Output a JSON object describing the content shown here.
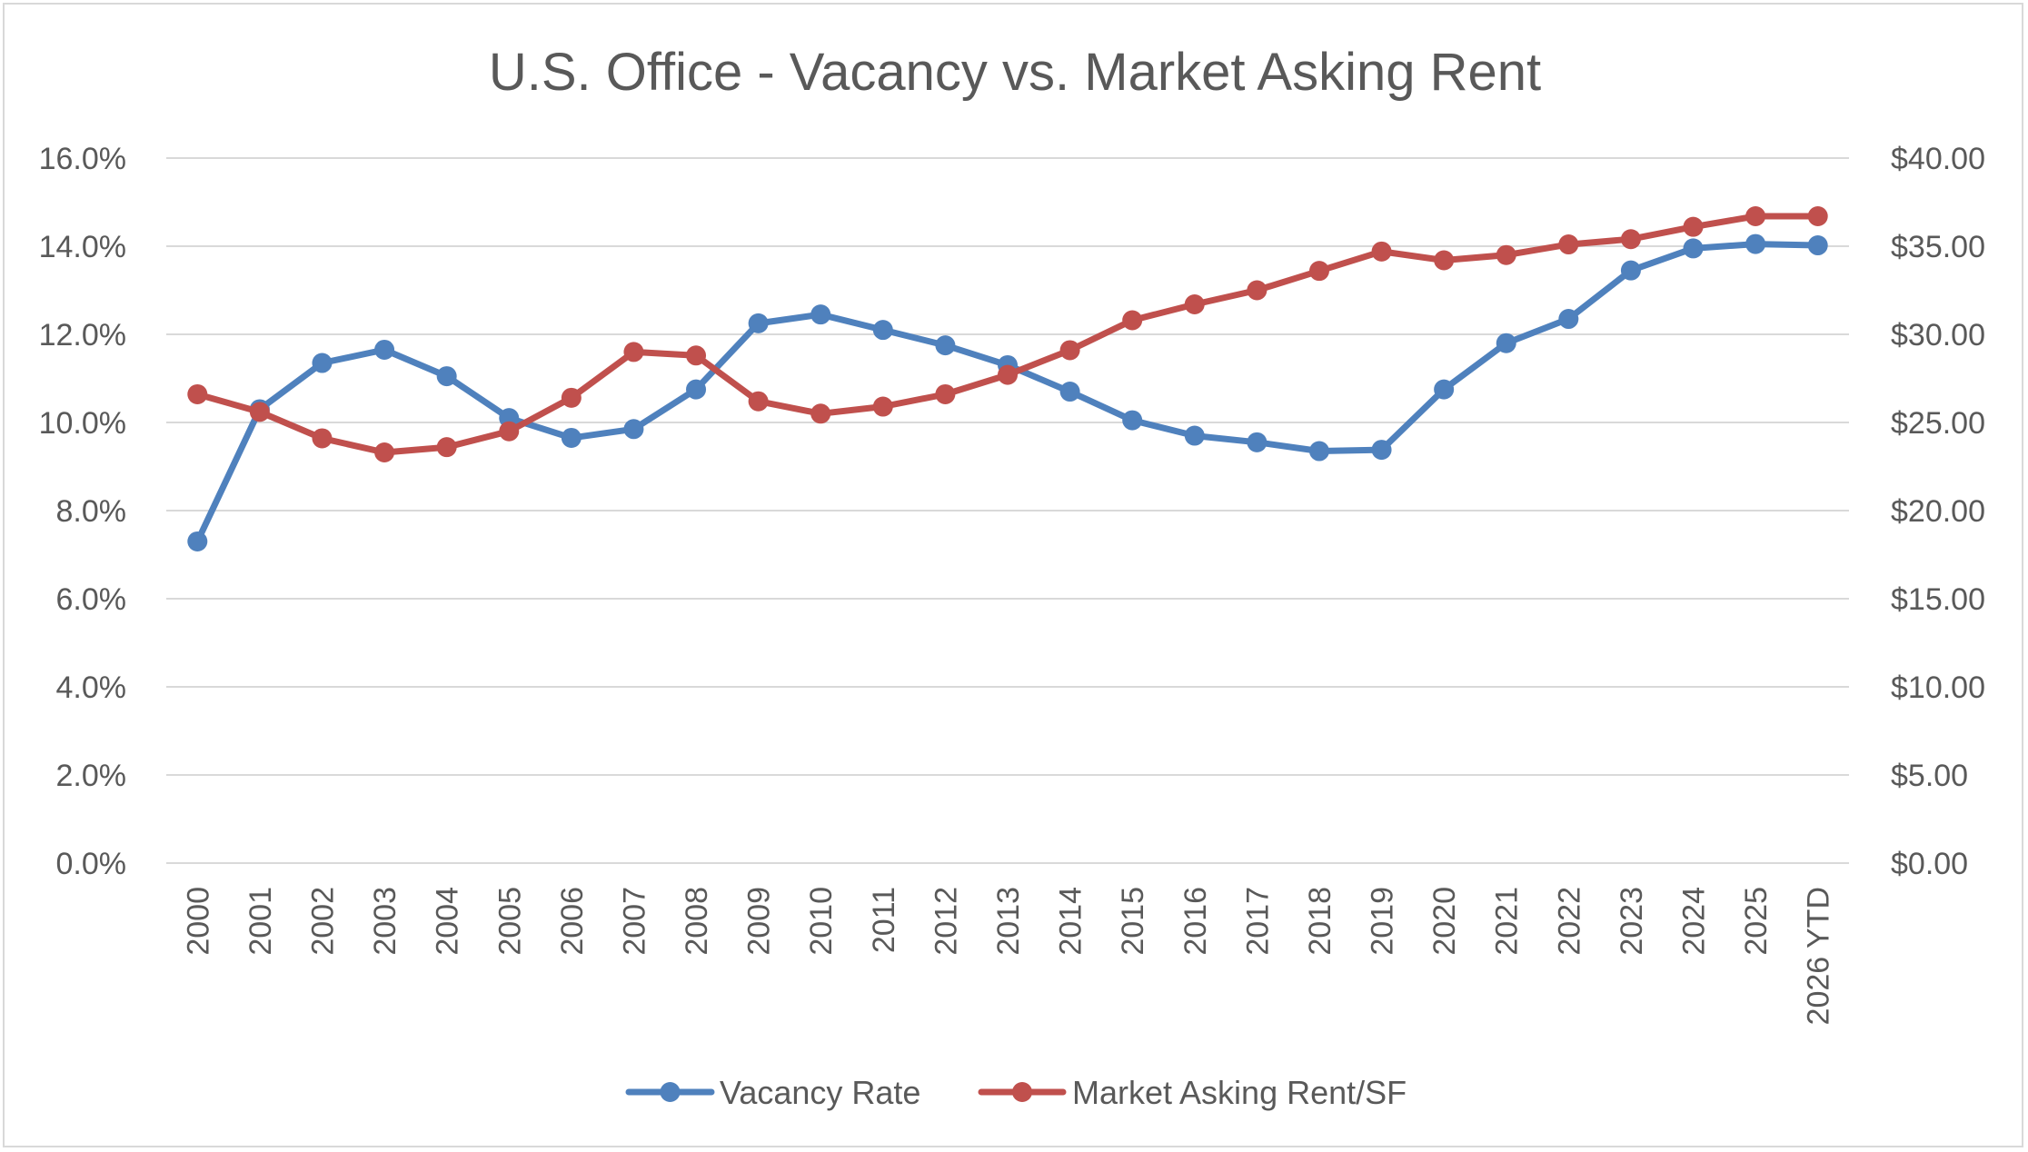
{
  "chart_data": {
    "type": "line",
    "title": "U.S. Office - Vacancy vs. Market Asking Rent",
    "categories": [
      "2000",
      "2001",
      "2002",
      "2003",
      "2004",
      "2005",
      "2006",
      "2007",
      "2008",
      "2009",
      "2010",
      "2011",
      "2012",
      "2013",
      "2014",
      "2015",
      "2016",
      "2017",
      "2018",
      "2019",
      "2020",
      "2021",
      "2022",
      "2023",
      "2024",
      "2025",
      "2026 YTD"
    ],
    "y_left": {
      "ylim": [
        0,
        16
      ],
      "ticks": [
        0,
        2,
        4,
        6,
        8,
        10,
        12,
        14,
        16
      ],
      "tick_labels": [
        "0.0%",
        "2.0%",
        "4.0%",
        "6.0%",
        "8.0%",
        "10.0%",
        "12.0%",
        "14.0%",
        "16.0%"
      ]
    },
    "y_right": {
      "ylim": [
        0,
        40
      ],
      "ticks": [
        0,
        5,
        10,
        15,
        20,
        25,
        30,
        35,
        40
      ],
      "tick_labels": [
        "$0.00",
        "$5.00",
        "$10.00",
        "$15.00",
        "$20.00",
        "$25.00",
        "$30.00",
        "$35.00",
        "$40.00"
      ]
    },
    "grid": true,
    "legend_position": "bottom",
    "series": [
      {
        "name": "Vacancy Rate",
        "axis": "left",
        "color": "#4f81bd",
        "values": [
          7.3,
          10.3,
          11.35,
          11.65,
          11.05,
          10.1,
          9.65,
          9.85,
          10.75,
          12.25,
          12.45,
          12.1,
          11.75,
          11.3,
          10.7,
          10.05,
          9.7,
          9.55,
          9.35,
          9.38,
          10.75,
          11.8,
          12.35,
          13.45,
          13.95,
          14.05,
          14.02
        ]
      },
      {
        "name": "Market Asking Rent/SF",
        "axis": "right",
        "color": "#c0504d",
        "values": [
          26.6,
          25.6,
          24.1,
          23.3,
          23.6,
          24.5,
          26.4,
          29.0,
          28.8,
          26.2,
          25.5,
          25.9,
          26.6,
          27.7,
          29.1,
          30.8,
          31.7,
          32.5,
          33.6,
          34.7,
          34.2,
          34.5,
          35.1,
          35.4,
          36.1,
          36.7,
          36.7
        ]
      }
    ]
  }
}
